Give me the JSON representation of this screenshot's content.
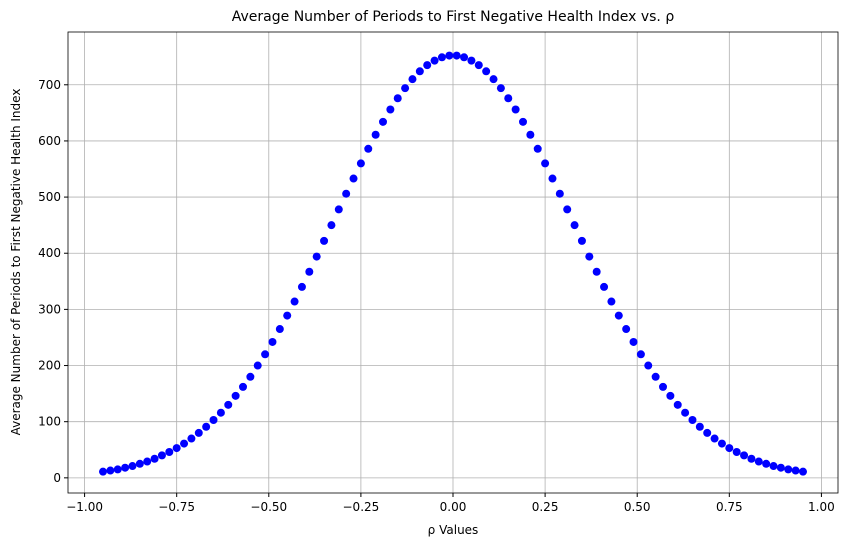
{
  "chart_data": {
    "type": "scatter",
    "title": "Average Number of Periods to First Negative Health Index vs. ρ",
    "x_label": "ρ Values",
    "y_label": "Average Number of Periods to First Negative Health Index",
    "color": "#0000ff",
    "grid": true,
    "x": [
      -0.95,
      -0.93,
      -0.91,
      -0.89,
      -0.87,
      -0.85,
      -0.83,
      -0.81,
      -0.79,
      -0.77,
      -0.75,
      -0.73,
      -0.71,
      -0.69,
      -0.67,
      -0.65,
      -0.63,
      -0.61,
      -0.59,
      -0.57,
      -0.55,
      -0.53,
      -0.51,
      -0.49,
      -0.47,
      -0.45,
      -0.43,
      -0.41,
      -0.39,
      -0.37,
      -0.35,
      -0.33,
      -0.31,
      -0.29,
      -0.27,
      -0.25,
      -0.23,
      -0.21,
      -0.19,
      -0.17,
      -0.15,
      -0.13,
      -0.11,
      -0.09,
      -0.07,
      -0.05,
      -0.03,
      -0.01,
      0.01,
      0.03,
      0.05,
      0.07,
      0.09,
      0.11,
      0.13,
      0.15,
      0.17,
      0.19,
      0.21,
      0.23,
      0.25,
      0.27,
      0.29,
      0.31,
      0.33,
      0.35,
      0.37,
      0.39,
      0.41,
      0.43,
      0.45,
      0.47,
      0.49,
      0.51,
      0.53,
      0.55,
      0.57,
      0.59,
      0.61,
      0.63,
      0.65,
      0.67,
      0.69,
      0.71,
      0.73,
      0.75,
      0.77,
      0.79,
      0.81,
      0.83,
      0.85,
      0.87,
      0.89,
      0.91,
      0.93,
      0.95
    ],
    "values": [
      11,
      13,
      15,
      18,
      21,
      25,
      29,
      34,
      40,
      46,
      53,
      61,
      70,
      80,
      91,
      103,
      116,
      130,
      146,
      162,
      180,
      200,
      220,
      242,
      265,
      289,
      314,
      340,
      367,
      394,
      422,
      450,
      478,
      506,
      533,
      560,
      586,
      611,
      634,
      656,
      676,
      694,
      710,
      724,
      735,
      743,
      749,
      752,
      752,
      749,
      743,
      735,
      724,
      710,
      694,
      676,
      656,
      634,
      611,
      586,
      560,
      533,
      506,
      478,
      450,
      422,
      394,
      367,
      340,
      314,
      289,
      265,
      242,
      220,
      200,
      180,
      162,
      146,
      130,
      116,
      103,
      91,
      80,
      70,
      61,
      53,
      46,
      40,
      34,
      29,
      25,
      21,
      18,
      15,
      13,
      11
    ],
    "xlim": [
      -1.045,
      1.045
    ],
    "ylim": [
      -27,
      794
    ],
    "xticks": [
      {
        "value": -1,
        "label": "−1.00"
      },
      {
        "value": -0.75,
        "label": "−0.75"
      },
      {
        "value": -0.5,
        "label": "−0.50"
      },
      {
        "value": -0.25,
        "label": "−0.25"
      },
      {
        "value": 0,
        "label": "0.00"
      },
      {
        "value": 0.25,
        "label": "0.25"
      },
      {
        "value": 0.5,
        "label": "0.50"
      },
      {
        "value": 0.75,
        "label": "0.75"
      },
      {
        "value": 1,
        "label": "1.00"
      }
    ],
    "yticks": [
      0,
      100,
      200,
      300,
      400,
      500,
      600,
      700
    ]
  }
}
